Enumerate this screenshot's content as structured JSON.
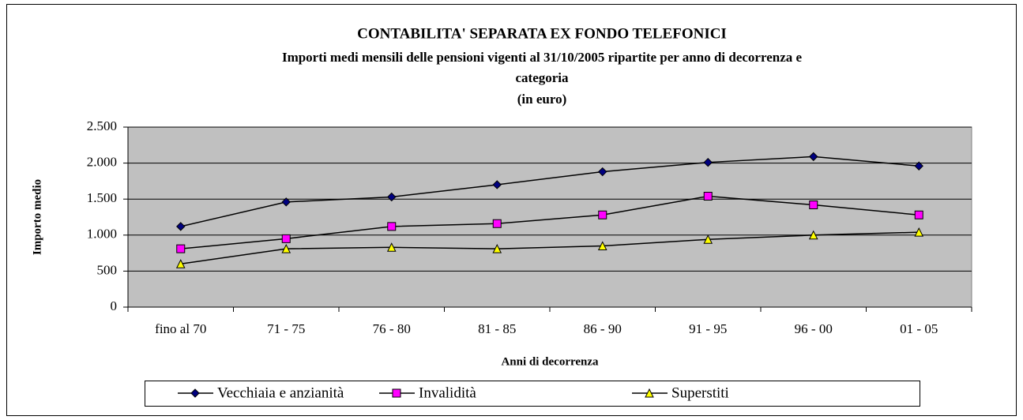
{
  "chart_data": {
    "type": "line",
    "title": "CONTABILITA' SEPARATA EX FONDO TELEFONICI",
    "subtitle": [
      "Importi medi mensili delle pensioni vigenti al 31/10/2005 ripartite per anno di decorrenza e",
      "categoria",
      "(in euro)"
    ],
    "x_label": "Anni di decorrenza",
    "y_label": "Importo medio",
    "categories": [
      "fino al 70",
      "71 - 75",
      "76 - 80",
      "81 - 85",
      "86 - 90",
      "91 - 95",
      "96 - 00",
      "01 - 05"
    ],
    "series": [
      {
        "name": "Vecchiaia e anzianità",
        "color": "#000080",
        "marker": "diamond",
        "values": [
          1120,
          1460,
          1530,
          1700,
          1880,
          2010,
          2090,
          1960
        ]
      },
      {
        "name": "Invalidità",
        "color": "#ff00ff",
        "marker": "square",
        "values": [
          810,
          950,
          1120,
          1160,
          1280,
          1540,
          1420,
          1280
        ]
      },
      {
        "name": "Superstiti",
        "color": "#ffff00",
        "marker": "triangle",
        "values": [
          600,
          810,
          830,
          810,
          850,
          940,
          1000,
          1040
        ]
      }
    ],
    "ylim": [
      0,
      2500
    ],
    "yticks": [
      0,
      500,
      {
        "value": 1000,
        "label": "1.000"
      },
      {
        "value": 1500,
        "label": "1.500"
      },
      {
        "value": 2000,
        "label": "2.000"
      },
      {
        "value": 2500,
        "label": "2.500"
      }
    ],
    "grid": true,
    "legend": "bottom"
  }
}
